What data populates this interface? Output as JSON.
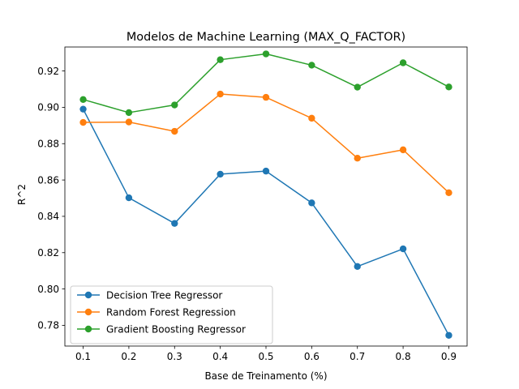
{
  "chart_data": {
    "type": "line",
    "title": "Modelos de Machine Learning (MAX_Q_FACTOR)",
    "xlabel": "Base de Treinamento (%)",
    "ylabel": "R^2",
    "x": [
      0.1,
      0.2,
      0.3,
      0.4,
      0.5,
      0.6,
      0.7,
      0.8,
      0.9
    ],
    "x_ticks": [
      "0.1",
      "0.2",
      "0.3",
      "0.4",
      "0.5",
      "0.6",
      "0.7",
      "0.8",
      "0.9"
    ],
    "y_ticks": [
      "0.78",
      "0.80",
      "0.82",
      "0.84",
      "0.86",
      "0.88",
      "0.90",
      "0.92"
    ],
    "xlim": [
      0.06,
      0.94
    ],
    "ylim": [
      0.7686,
      0.9332
    ],
    "grid": false,
    "legend_position": "lower-left",
    "series": [
      {
        "name": "Decision Tree Regressor",
        "color": "#1f77b4",
        "values": [
          0.899,
          0.8502,
          0.8361,
          0.8632,
          0.8649,
          0.8474,
          0.8124,
          0.8221,
          0.7745
        ]
      },
      {
        "name": "Random Forest Regression",
        "color": "#ff7f0e",
        "values": [
          0.8917,
          0.8919,
          0.8868,
          0.9073,
          0.9055,
          0.894,
          0.872,
          0.8766,
          0.853
        ]
      },
      {
        "name": "Gradient Boosting Regressor",
        "color": "#2ca02c",
        "values": [
          0.9043,
          0.8971,
          0.9013,
          0.9262,
          0.9294,
          0.9232,
          0.9111,
          0.9245,
          0.9112
        ]
      }
    ]
  }
}
